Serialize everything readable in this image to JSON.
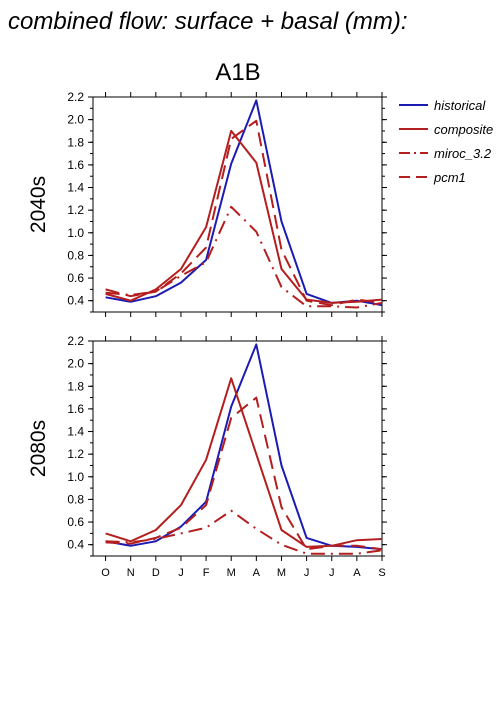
{
  "page_title": "combined flow: surface + basal (mm):",
  "chart_data": {
    "type": "line",
    "scenario_label": "A1B",
    "categories": [
      "O",
      "N",
      "D",
      "J",
      "F",
      "M",
      "A",
      "M",
      "J",
      "J",
      "A",
      "S"
    ],
    "ylim": [
      0.3,
      2.2
    ],
    "yticks": [
      "0.4",
      "0.6",
      "0.8",
      "1.0",
      "1.2",
      "1.4",
      "1.6",
      "1.8",
      "2.0",
      "2.2"
    ],
    "legend_position": "right",
    "legend": [
      {
        "name": "historical",
        "color": "#1c1cb4",
        "dash": "solid"
      },
      {
        "name": "composite",
        "color": "#b41e1e",
        "dash": "solid"
      },
      {
        "name": "miroc_3.2",
        "color": "#b41e1e",
        "dash": "dashdot"
      },
      {
        "name": "pcm1",
        "color": "#b41e1e",
        "dash": "dash"
      }
    ],
    "panels": [
      {
        "label": "2040s",
        "series": [
          {
            "name": "historical",
            "values": [
              0.43,
              0.39,
              0.44,
              0.56,
              0.76,
              1.61,
              2.17,
              1.1,
              0.46,
              0.38,
              0.4,
              0.36
            ]
          },
          {
            "name": "composite",
            "values": [
              0.46,
              0.4,
              0.5,
              0.68,
              1.05,
              1.9,
              1.62,
              0.68,
              0.41,
              0.38,
              0.39,
              0.41
            ]
          },
          {
            "name": "miroc_3.2",
            "values": [
              0.47,
              0.45,
              0.48,
              0.62,
              0.74,
              1.23,
              1.01,
              0.52,
              0.35,
              0.35,
              0.34,
              0.38
            ]
          },
          {
            "name": "pcm1",
            "values": [
              0.5,
              0.44,
              0.48,
              0.64,
              0.87,
              1.83,
              1.99,
              0.85,
              0.4,
              0.36,
              0.41,
              0.38
            ]
          }
        ]
      },
      {
        "label": "2080s",
        "series": [
          {
            "name": "historical",
            "values": [
              0.43,
              0.39,
              0.43,
              0.56,
              0.78,
              1.62,
              2.17,
              1.1,
              0.46,
              0.39,
              0.38,
              0.36
            ]
          },
          {
            "name": "composite",
            "values": [
              0.5,
              0.43,
              0.53,
              0.75,
              1.15,
              1.87,
              1.2,
              0.53,
              0.38,
              0.39,
              0.44,
              0.45
            ]
          },
          {
            "name": "miroc_3.2",
            "values": [
              0.43,
              0.42,
              0.45,
              0.5,
              0.55,
              0.7,
              0.54,
              0.4,
              0.32,
              0.32,
              0.32,
              0.35
            ]
          },
          {
            "name": "pcm1",
            "values": [
              0.42,
              0.41,
              0.46,
              0.55,
              0.75,
              1.52,
              1.7,
              0.73,
              0.36,
              0.39,
              0.39,
              0.36
            ]
          }
        ]
      }
    ]
  }
}
